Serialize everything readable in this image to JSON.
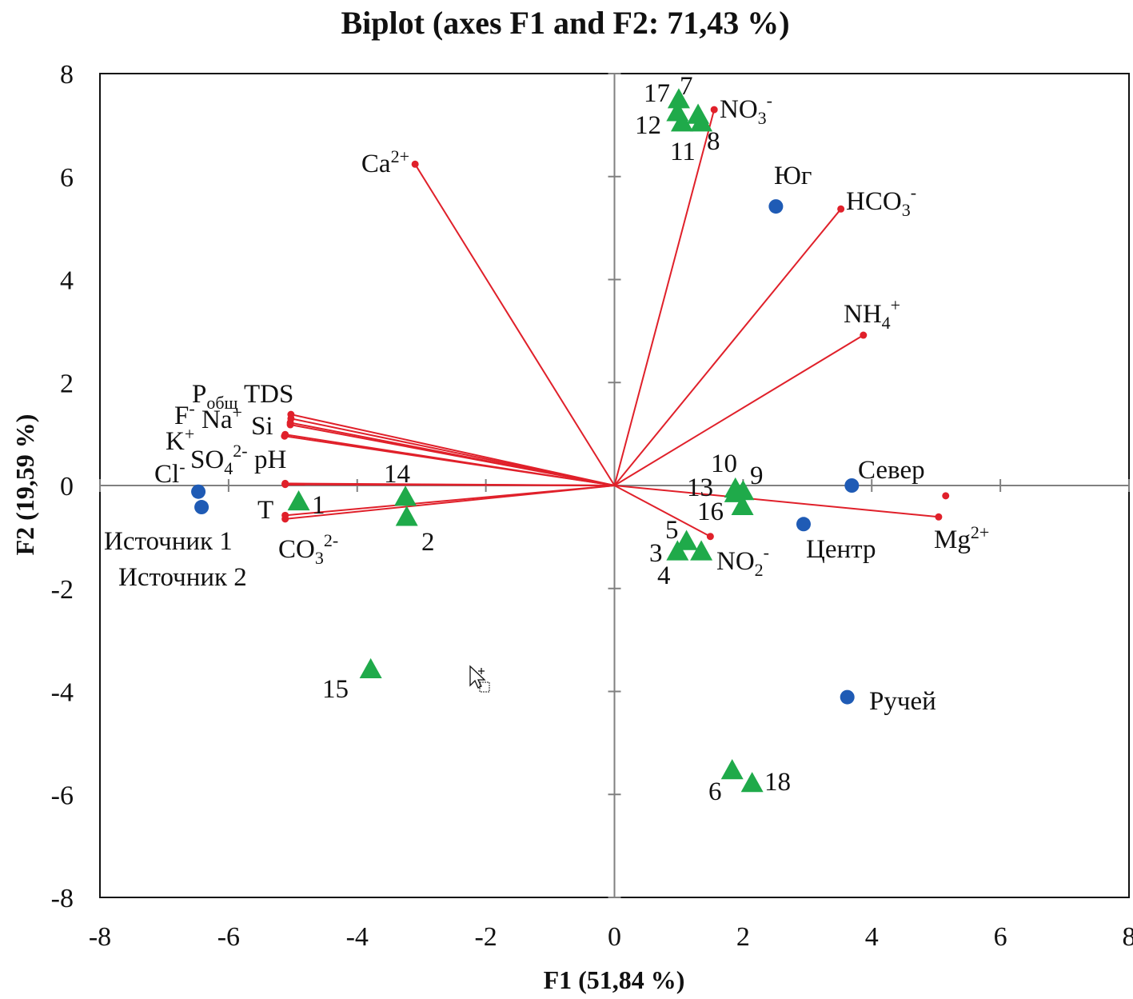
{
  "chart_data": {
    "type": "scatter",
    "subtype": "pca-biplot",
    "title": "Biplot (axes F1 and F2: 71,43 %)",
    "xlabel": "F1 (51,84 %)",
    "ylabel": "F2 (19,59 %)",
    "xlim": [
      -8,
      8
    ],
    "ylim": [
      -8,
      8
    ],
    "xticks": [
      "-8",
      "-6",
      "-4",
      "-2",
      "0",
      "2",
      "4",
      "6",
      "8"
    ],
    "yticks": [
      "8",
      "6",
      "4",
      "2",
      "0",
      "-2",
      "-4",
      "-6",
      "-8"
    ],
    "grid": false,
    "colors": {
      "vectors": "#e0202a",
      "observations": "#1faa4a",
      "sites": "#1f5bb5",
      "axis": "#808080"
    },
    "variables": [
      {
        "label_parts": [
          [
            "Ca",
            ""
          ],
          [
            "2+",
            "sup"
          ]
        ],
        "x": -3.1,
        "y": 6.24
      },
      {
        "label_parts": [
          [
            "NO",
            ""
          ],
          [
            "3",
            "sub"
          ],
          [
            "-",
            "sup"
          ]
        ],
        "x": 1.55,
        "y": 7.3
      },
      {
        "label_parts": [
          [
            "HCO",
            ""
          ],
          [
            "3",
            "sub"
          ],
          [
            "-",
            "sup"
          ]
        ],
        "x": 3.52,
        "y": 5.37
      },
      {
        "label_parts": [
          [
            "NH",
            ""
          ],
          [
            "4",
            "sub"
          ],
          [
            "+",
            "sup"
          ]
        ],
        "x": 3.87,
        "y": 2.92
      },
      {
        "label_parts": [
          [
            "Mg",
            ""
          ],
          [
            "2+",
            "sup"
          ]
        ],
        "x": 5.04,
        "y": -0.61
      },
      {
        "label_parts": [
          [
            "NO",
            ""
          ],
          [
            "2",
            "sub"
          ],
          [
            "-",
            "sup"
          ]
        ],
        "x": 1.49,
        "y": -0.99
      },
      {
        "label_parts": [
          [
            "TDS",
            ""
          ]
        ],
        "x": -5.03,
        "y": 1.38
      },
      {
        "label_parts": [
          [
            "P",
            ""
          ],
          [
            "общ",
            "sub"
          ]
        ],
        "x": -5.03,
        "y": 1.3
      },
      {
        "label_parts": [
          [
            "Na",
            ""
          ],
          [
            "+",
            "sup"
          ]
        ],
        "x": -5.04,
        "y": 1.22
      },
      {
        "label_parts": [
          [
            "Si",
            ""
          ]
        ],
        "x": -5.04,
        "y": 1.18
      },
      {
        "label_parts": [
          [
            "F",
            ""
          ],
          [
            "-",
            "sup"
          ]
        ],
        "x": -5.12,
        "y": 0.99
      },
      {
        "label_parts": [
          [
            "K",
            ""
          ],
          [
            "+",
            "sup"
          ]
        ],
        "x": -5.13,
        "y": 0.96
      },
      {
        "label_parts": [
          [
            "Cl",
            ""
          ],
          [
            "-",
            "sup"
          ]
        ],
        "x": -5.12,
        "y": 0.04
      },
      {
        "label_parts": [
          [
            "SO",
            ""
          ],
          [
            "4",
            "sub"
          ],
          [
            "2-",
            "sup"
          ]
        ],
        "x": -5.12,
        "y": 0.03
      },
      {
        "label_parts": [
          [
            "pH",
            ""
          ]
        ],
        "x": -5.12,
        "y": 0.02
      },
      {
        "label_parts": [
          [
            "T",
            ""
          ]
        ],
        "x": -5.12,
        "y": -0.58
      },
      {
        "label_parts": [
          [
            "CO",
            ""
          ],
          [
            "3",
            "sub"
          ],
          [
            "2-",
            "sup"
          ]
        ],
        "x": -5.12,
        "y": -0.65
      }
    ],
    "unlabeled_points": [
      {
        "x": 5.15,
        "y": -0.2
      }
    ],
    "observations": [
      {
        "label": "17",
        "x": 1.0,
        "y": 7.5
      },
      {
        "label": "7",
        "x": 1.3,
        "y": 7.2
      },
      {
        "label": "12",
        "x": 0.98,
        "y": 7.25
      },
      {
        "label": "11",
        "x": 1.05,
        "y": 7.05
      },
      {
        "label": "8",
        "x": 1.35,
        "y": 7.05
      },
      {
        "label": "14",
        "x": -3.25,
        "y": -0.22
      },
      {
        "label": "2",
        "x": -3.23,
        "y": -0.61
      },
      {
        "label": "1",
        "x": -4.91,
        "y": -0.31
      },
      {
        "label": "15",
        "x": -3.79,
        "y": -3.57
      },
      {
        "label": "10",
        "x": 1.88,
        "y": -0.06
      },
      {
        "label": "9",
        "x": 2.0,
        "y": -0.11
      },
      {
        "label": "13",
        "x": 1.88,
        "y": -0.15
      },
      {
        "label": "16",
        "x": 1.99,
        "y": -0.4
      },
      {
        "label": "5",
        "x": 1.12,
        "y": -1.08
      },
      {
        "label": "3",
        "x": 0.98,
        "y": -1.28
      },
      {
        "label": "4",
        "x": 1.35,
        "y": -1.28
      },
      {
        "label": "6",
        "x": 1.83,
        "y": -5.53
      },
      {
        "label": "18",
        "x": 2.14,
        "y": -5.78
      }
    ],
    "sites": [
      {
        "label": "Юг",
        "x": 2.51,
        "y": 5.42
      },
      {
        "label": "Север",
        "x": 3.69,
        "y": 0.0
      },
      {
        "label": "Центр",
        "x": 2.94,
        "y": -0.75
      },
      {
        "label": "Ручей",
        "x": 3.62,
        "y": -4.11
      },
      {
        "label": "Источник 1",
        "x": -6.47,
        "y": -0.12
      },
      {
        "label": "Источник 2",
        "x": -6.42,
        "y": -0.42
      }
    ]
  }
}
